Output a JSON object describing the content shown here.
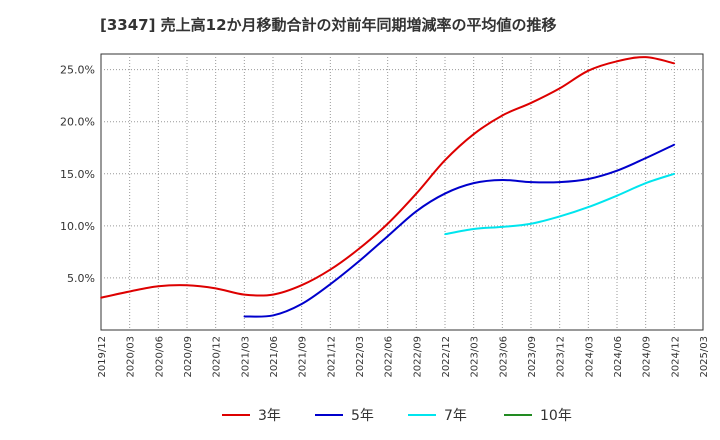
{
  "chart_data": {
    "type": "line",
    "title": "[3347]  売上高12か月移動合計の対前年同期増減率の平均値の推移",
    "xlabel": "",
    "ylabel": "",
    "ylim": [
      0,
      26.5
    ],
    "grid": true,
    "legend_position": "bottom",
    "x_ticks": [
      "2019/12",
      "2020/03",
      "2020/06",
      "2020/09",
      "2020/12",
      "2021/03",
      "2021/06",
      "2021/09",
      "2021/12",
      "2022/03",
      "2022/06",
      "2022/09",
      "2022/12",
      "2023/03",
      "2023/06",
      "2023/09",
      "2023/12",
      "2024/03",
      "2024/06",
      "2024/09",
      "2024/12",
      "2025/03"
    ],
    "y_ticks": [
      {
        "value": 5,
        "label": "5.0%"
      },
      {
        "value": 10,
        "label": "10.0%"
      },
      {
        "value": 15,
        "label": "15.0%"
      },
      {
        "value": 20,
        "label": "20.0%"
      },
      {
        "value": 25,
        "label": "25.0%"
      }
    ],
    "series": [
      {
        "name": "3年",
        "color": "#dd0000",
        "data": [
          [
            "2019/12",
            3.1
          ],
          [
            "2020/03",
            3.7
          ],
          [
            "2020/06",
            4.2
          ],
          [
            "2020/09",
            4.3
          ],
          [
            "2020/12",
            4.0
          ],
          [
            "2021/03",
            3.4
          ],
          [
            "2021/06",
            3.4
          ],
          [
            "2021/09",
            4.3
          ],
          [
            "2021/12",
            5.8
          ],
          [
            "2022/03",
            7.8
          ],
          [
            "2022/06",
            10.2
          ],
          [
            "2022/09",
            13.1
          ],
          [
            "2022/12",
            16.3
          ],
          [
            "2023/03",
            18.8
          ],
          [
            "2023/06",
            20.6
          ],
          [
            "2023/09",
            21.8
          ],
          [
            "2023/12",
            23.2
          ],
          [
            "2024/03",
            24.9
          ],
          [
            "2024/06",
            25.8
          ],
          [
            "2024/09",
            26.2
          ],
          [
            "2024/12",
            25.6
          ]
        ]
      },
      {
        "name": "5年",
        "color": "#0000cc",
        "data": [
          [
            "2021/03",
            1.3
          ],
          [
            "2021/06",
            1.4
          ],
          [
            "2021/09",
            2.5
          ],
          [
            "2021/12",
            4.4
          ],
          [
            "2022/03",
            6.6
          ],
          [
            "2022/06",
            9.0
          ],
          [
            "2022/09",
            11.4
          ],
          [
            "2022/12",
            13.1
          ],
          [
            "2023/03",
            14.1
          ],
          [
            "2023/06",
            14.4
          ],
          [
            "2023/09",
            14.2
          ],
          [
            "2023/12",
            14.2
          ],
          [
            "2024/03",
            14.5
          ],
          [
            "2024/06",
            15.3
          ],
          [
            "2024/09",
            16.5
          ],
          [
            "2024/12",
            17.8
          ]
        ]
      },
      {
        "name": "7年",
        "color": "#00e5ee",
        "data": [
          [
            "2022/12",
            9.2
          ],
          [
            "2023/03",
            9.7
          ],
          [
            "2023/06",
            9.9
          ],
          [
            "2023/09",
            10.2
          ],
          [
            "2023/12",
            10.9
          ],
          [
            "2024/03",
            11.8
          ],
          [
            "2024/06",
            12.9
          ],
          [
            "2024/09",
            14.1
          ],
          [
            "2024/12",
            15.0
          ]
        ]
      },
      {
        "name": "10年",
        "color": "#228b22",
        "data": []
      }
    ]
  }
}
